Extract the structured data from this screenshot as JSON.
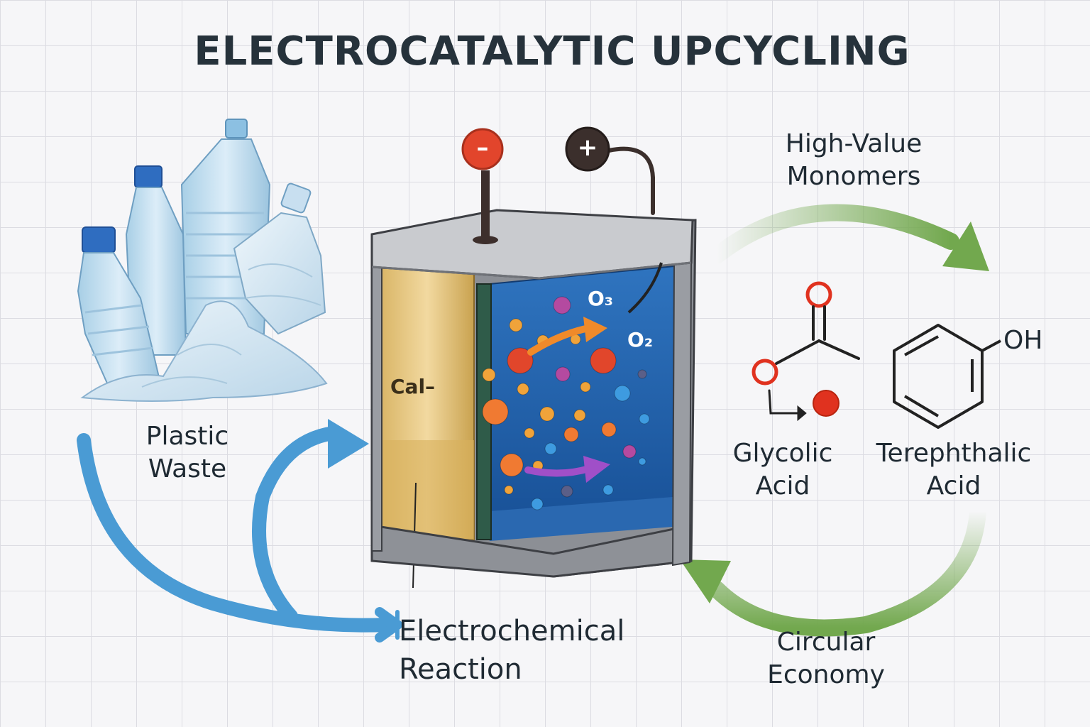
{
  "title": "ELECTROCATALYTIC UPCYCLING",
  "labels": {
    "plastic_waste": [
      "Plastic",
      "Waste"
    ],
    "electrochemical_reaction": [
      "Electrochemical",
      "Reaction"
    ],
    "high_value_monomers": [
      "High-Value",
      "Monomers"
    ],
    "glycolic_acid": [
      "Glycolic",
      "Acid"
    ],
    "terephthalic_acid": [
      "Terephthalic",
      "Acid"
    ],
    "circular_economy": [
      "Circular",
      "Economy"
    ]
  },
  "cell": {
    "electrode_label": "Cal–",
    "negative_terminal": "–",
    "positive_terminal": "+",
    "gas_o3": "O₃",
    "gas_o2": "O₂"
  },
  "molecule": {
    "hydroxyl_label": "OH"
  },
  "icons": [
    "plastic-bottles-icon",
    "negative-terminal-icon",
    "positive-terminal-icon",
    "benzene-ring-icon",
    "glycolic-structure-icon"
  ],
  "colors": {
    "flow_blue": "#4a9bd4",
    "cycle_green": "#72a84e",
    "electrolyte_blue": "#1e5fae",
    "electrode_gold": "#e8c77c",
    "terminal_red": "#e2452c",
    "oxygen_red": "#e0321f"
  }
}
